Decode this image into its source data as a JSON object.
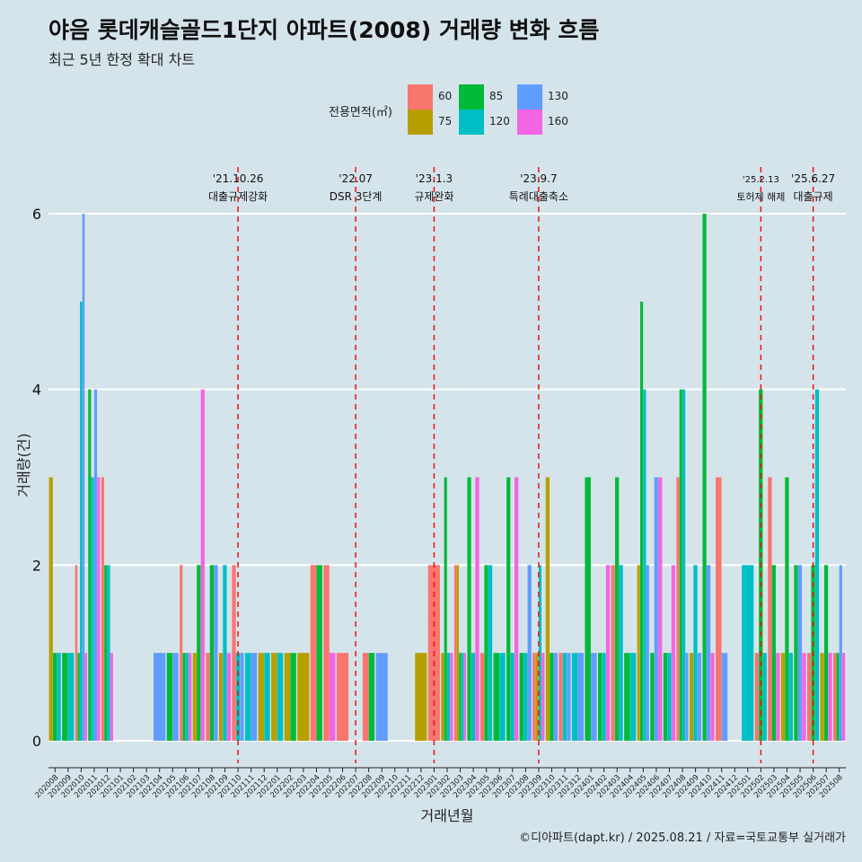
{
  "header": {
    "title": "야음 롯데캐슬골드1단지 아파트(2008) 거래량 변화 흐름",
    "subtitle": "최근 5년 한정 확대 차트"
  },
  "legend": {
    "title": "전용면적(㎡)",
    "items": [
      {
        "label": "60",
        "color": "#f8766d"
      },
      {
        "label": "75",
        "color": "#b79f00"
      },
      {
        "label": "85",
        "color": "#00ba38"
      },
      {
        "label": "120",
        "color": "#00bfc4"
      },
      {
        "label": "130",
        "color": "#619cff"
      },
      {
        "label": "160",
        "color": "#f564e3"
      }
    ]
  },
  "footer": {
    "credit": "©디아파트(dapt.kr) / 2025.08.21 / 자료=국토교통부 실거래가"
  },
  "chart_data": {
    "type": "bar",
    "title": "야음 롯데캐슬골드1단지 아파트(2008) 거래량 변화 흐름",
    "xlabel": "거래년월",
    "ylabel": "거래량(건)",
    "ylim": [
      0,
      6
    ],
    "yticks": [
      0,
      2,
      4,
      6
    ],
    "position": "dodge",
    "series_names": [
      "60",
      "75",
      "85",
      "120",
      "130",
      "160"
    ],
    "categories": [
      "202008",
      "202009",
      "202010",
      "202011",
      "202012",
      "202101",
      "202102",
      "202103",
      "202104",
      "202105",
      "202106",
      "202107",
      "202108",
      "202109",
      "202110",
      "202111",
      "202112",
      "202201",
      "202202",
      "202203",
      "202204",
      "202205",
      "202206",
      "202207",
      "202208",
      "202209",
      "202210",
      "202211",
      "202212",
      "202301",
      "202302",
      "202303",
      "202304",
      "202305",
      "202306",
      "202307",
      "202308",
      "202309",
      "202310",
      "202311",
      "202312",
      "202401",
      "202402",
      "202403",
      "202404",
      "202405",
      "202406",
      "202407",
      "202408",
      "202409",
      "202410",
      "202411",
      "202412",
      "202501",
      "202502",
      "202503",
      "202504",
      "202505",
      "202506",
      "202507",
      "202508"
    ],
    "data": {
      "202008": {
        "75": 3,
        "85": 1,
        "120": 1
      },
      "202009": {
        "120": 1,
        "85": 1
      },
      "202010": {
        "60": 2,
        "85": 1,
        "120": 5,
        "130": 6,
        "160": 1
      },
      "202011": {
        "85": 4,
        "120": 3,
        "130": 4,
        "160": 3
      },
      "202012": {
        "60": 3,
        "85": 2,
        "120": 2,
        "160": 1
      },
      "202104": {
        "130": 1
      },
      "202105": {
        "130": 1,
        "85": 1
      },
      "202106": {
        "60": 2,
        "85": 1,
        "120": 1,
        "160": 1
      },
      "202107": {
        "160": 4,
        "75": 1,
        "85": 2
      },
      "202108": {
        "60": 1,
        "85": 2,
        "130": 2
      },
      "202109": {
        "120": 2,
        "160": 1,
        "75": 1
      },
      "202110": {
        "60": 2,
        "130": 1,
        "120": 1
      },
      "202111": {
        "120": 1,
        "130": 1
      },
      "202112": {
        "75": 1,
        "120": 1
      },
      "202201": {
        "75": 1,
        "120": 1
      },
      "202202": {
        "85": 1,
        "75": 1
      },
      "202203": {
        "75": 1
      },
      "202204": {
        "60": 2,
        "85": 2
      },
      "202205": {
        "60": 2,
        "160": 1
      },
      "202206": {
        "60": 1
      },
      "202208": {
        "60": 1,
        "85": 1
      },
      "202209": {
        "130": 1
      },
      "202212": {
        "75": 1
      },
      "202301": {
        "60": 2
      },
      "202302": {
        "75": 1,
        "85": 3,
        "120": 1,
        "160": 1
      },
      "202303": {
        "60": 2,
        "75": 2,
        "85": 1,
        "120": 1,
        "160": 1
      },
      "202304": {
        "85": 3,
        "120": 1,
        "160": 3
      },
      "202305": {
        "60": 1,
        "85": 2,
        "120": 2
      },
      "202306": {
        "85": 1,
        "120": 1
      },
      "202307": {
        "160": 3,
        "85": 3,
        "120": 1
      },
      "202308": {
        "85": 1,
        "120": 1,
        "130": 2
      },
      "202309": {
        "60": 1,
        "75": 1,
        "120": 2,
        "160": 1
      },
      "202310": {
        "75": 3,
        "85": 1,
        "130": 1
      },
      "202311": {
        "60": 1,
        "120": 1,
        "130": 1
      },
      "202312": {
        "120": 1,
        "130": 1
      },
      "202401": {
        "85": 3,
        "130": 1
      },
      "202402": {
        "85": 1,
        "120": 1,
        "160": 2
      },
      "202403": {
        "60": 2,
        "85": 3,
        "120": 2
      },
      "202404": {
        "85": 1,
        "120": 1
      },
      "202405": {
        "75": 2,
        "85": 5,
        "120": 4,
        "130": 2
      },
      "202406": {
        "85": 1,
        "130": 3,
        "160": 3
      },
      "202407": {
        "85": 1,
        "120": 1,
        "160": 2
      },
      "202408": {
        "60": 3,
        "85": 4,
        "120": 4,
        "130": 1
      },
      "202409": {
        "75": 1,
        "120": 2,
        "130": 1
      },
      "202410": {
        "85": 6,
        "130": 2,
        "160": 1
      },
      "202411": {
        "60": 3,
        "130": 1
      },
      "202501": {
        "120": 2
      },
      "202502": {
        "60": 1,
        "85": 4,
        "120": 1
      },
      "202503": {
        "60": 3,
        "85": 2,
        "160": 1
      },
      "202504": {
        "75": 1,
        "85": 3,
        "120": 1
      },
      "202505": {
        "130": 2,
        "160": 1,
        "85": 2
      },
      "202506": {
        "60": 1,
        "85": 2,
        "120": 4
      },
      "202507": {
        "75": 1,
        "85": 2,
        "160": 1
      },
      "202508": {
        "60": 1,
        "85": 1,
        "130": 2,
        "160": 1
      }
    },
    "events": [
      {
        "date": "'21.10.26",
        "label": "대출규제강화",
        "at": "202110"
      },
      {
        "date": "'22.07",
        "label": "DSR 3단계",
        "at": "202207"
      },
      {
        "date": "'23.1.3",
        "label": "규제완화",
        "at": "202301"
      },
      {
        "date": "'23.9.7",
        "label": "특례대출축소",
        "at": "202309"
      },
      {
        "date": "'25.2.13",
        "label": "토허제 해제",
        "at": "202502"
      },
      {
        "date": "'25.6.27",
        "label": "대출규제",
        "at": "202506"
      }
    ]
  }
}
